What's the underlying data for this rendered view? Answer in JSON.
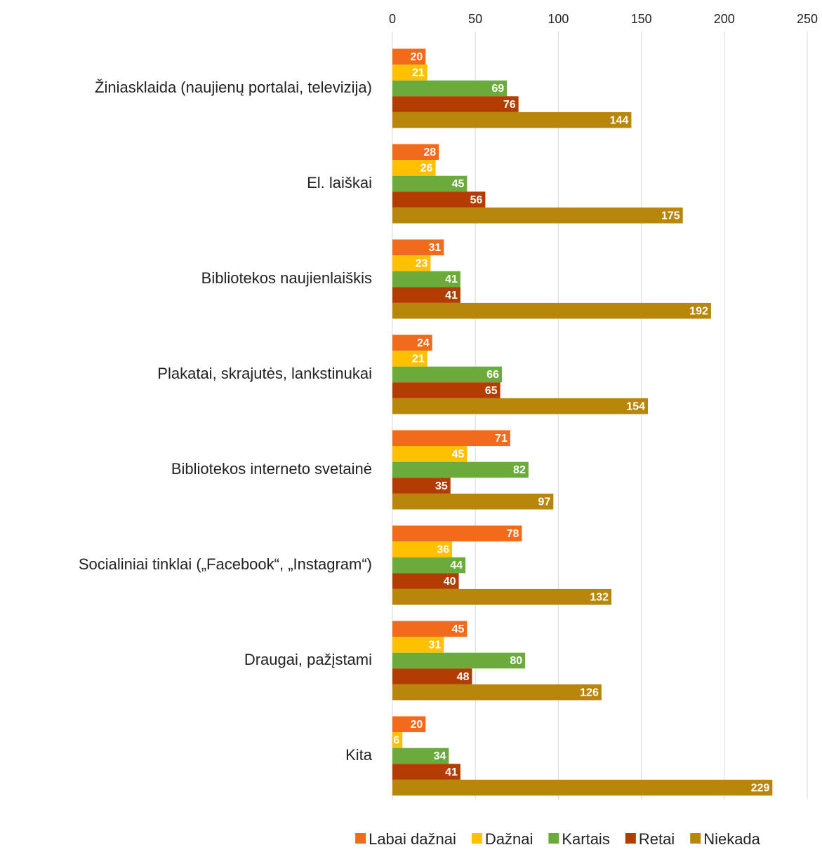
{
  "chart_data": {
    "type": "bar",
    "orientation": "horizontal",
    "categories": [
      "Žiniasklaida (naujienų portalai, televizija)",
      "El. laiškai",
      "Bibliotekos naujienlaiškis",
      "Plakatai, skrajutės, lankstinukai",
      "Bibliotekos interneto svetainė",
      "Socialiniai tinklai („Facebook“, „Instagram“)",
      "Draugai, pažįstami",
      "Kita"
    ],
    "series": [
      {
        "name": "Labai dažnai",
        "color": "#f26a1b",
        "values": [
          20,
          28,
          31,
          24,
          71,
          78,
          45,
          20
        ]
      },
      {
        "name": "Dažnai",
        "color": "#ffc000",
        "values": [
          21,
          26,
          23,
          21,
          45,
          36,
          31,
          6
        ]
      },
      {
        "name": "Kartais",
        "color": "#6aab3c",
        "values": [
          69,
          45,
          41,
          66,
          82,
          44,
          80,
          34
        ]
      },
      {
        "name": "Retai",
        "color": "#b33d00",
        "values": [
          76,
          56,
          41,
          65,
          35,
          40,
          48,
          41
        ]
      },
      {
        "name": "Niekada",
        "color": "#b8860b",
        "values": [
          144,
          175,
          192,
          154,
          97,
          132,
          126,
          229
        ]
      }
    ],
    "xlim": [
      0,
      250
    ],
    "xticks": [
      0,
      50,
      100,
      150,
      200,
      250
    ],
    "grid": true,
    "legend": "bottom"
  }
}
